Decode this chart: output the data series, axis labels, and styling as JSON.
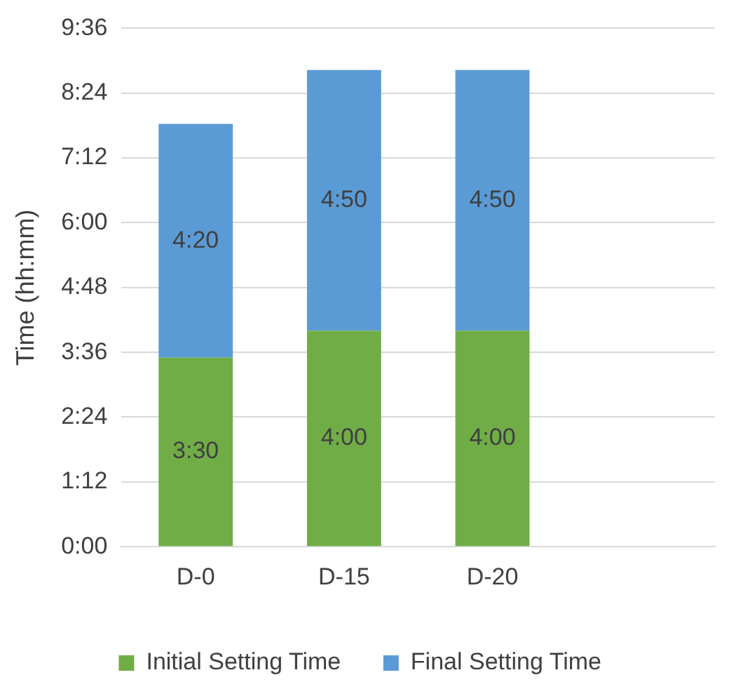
{
  "chart_data": {
    "type": "bar",
    "stacked": true,
    "ylabel": "Time (hh:mm)",
    "categories": [
      "D-0",
      "D-15",
      "D-20",
      null
    ],
    "series": [
      {
        "name": "Initial Setting Time",
        "color": "#70ad47",
        "values": [
          3.5,
          4,
          4,
          null
        ],
        "value_labels": [
          "3:30",
          "4:00",
          "4:00",
          null
        ]
      },
      {
        "name": "Final Setting Time",
        "color": "#5b9bd5",
        "values": [
          4.33,
          4.83,
          4.83,
          null
        ],
        "value_labels": [
          "4:20",
          "4:50",
          "4:50",
          null
        ]
      }
    ],
    "ylim": [
      0,
      9.6
    ],
    "yticks": [
      {
        "value": 0,
        "label": "0:00"
      },
      {
        "value": 1.2,
        "label": "1:12"
      },
      {
        "value": 2.4,
        "label": "2:24"
      },
      {
        "value": 3.6,
        "label": "3:36"
      },
      {
        "value": 4.8,
        "label": "4:48"
      },
      {
        "value": 6,
        "label": "6:00"
      },
      {
        "value": 7.2,
        "label": "7:12"
      },
      {
        "value": 8.4,
        "label": "8:24"
      },
      {
        "value": 9.6,
        "label": "9:36"
      }
    ],
    "grid": "y",
    "legend": "bottom"
  }
}
